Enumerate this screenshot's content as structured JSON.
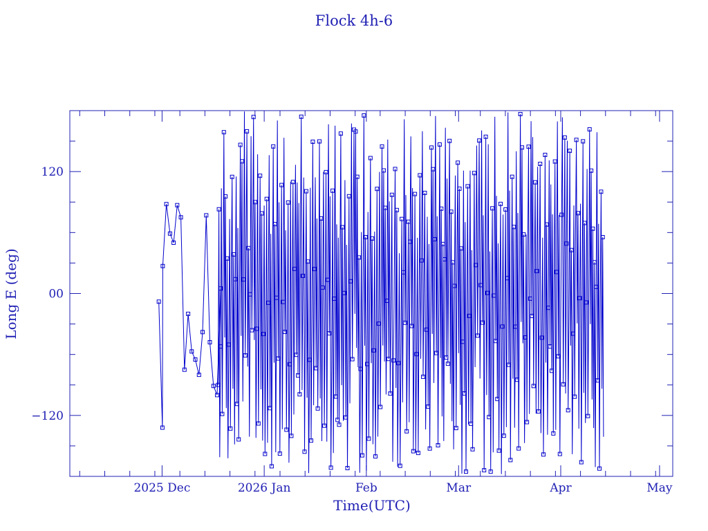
{
  "chart_data": {
    "type": "line",
    "title": "Flock 4h-6",
    "xlabel": "Time(UTC)",
    "ylabel": "Long E (deg)",
    "color": "#0000cc",
    "text_color": "#1f1fb4",
    "marker": "square",
    "xlim": [
      "2025-11-03",
      "2026-05-05"
    ],
    "ylim": [
      -180,
      180
    ],
    "x_ticks": [
      {
        "date": "2025-12-01",
        "label": "2025 Dec"
      },
      {
        "date": "2026-01-01",
        "label": "2026 Jan"
      },
      {
        "date": "2026-02-01",
        "label": "Feb"
      },
      {
        "date": "2026-03-01",
        "label": "Mar"
      },
      {
        "date": "2026-04-01",
        "label": "Apr"
      },
      {
        "date": "2026-05-01",
        "label": "May"
      }
    ],
    "y_ticks": [
      {
        "value": 120,
        "label": "120"
      },
      {
        "value": 0,
        "label": "00"
      },
      {
        "value": -120,
        "label": "−120"
      }
    ],
    "data_start": "2025-11-30",
    "data_end": "2026-04-14",
    "early_series": {
      "x": [
        "2025-11-30",
        "2025-12-01",
        "2025-12-01",
        "2025-12-02",
        "2025-12-03",
        "2025-12-04",
        "2025-12-05",
        "2025-12-06",
        "2025-12-07",
        "2025-12-08",
        "2025-12-09",
        "2025-12-10",
        "2025-12-11",
        "2025-12-12",
        "2025-12-13",
        "2025-12-14",
        "2025-12-15",
        "2025-12-16",
        "2025-12-17"
      ],
      "y": [
        -8,
        -132,
        27,
        88,
        59,
        50,
        87,
        75,
        -75,
        -20,
        -57,
        -65,
        -80,
        -38,
        77,
        -48,
        -91,
        -100,
        5
      ]
    },
    "drift_rate_deg_per_day": 2.4,
    "samples_per_day": 4,
    "wraps_per_day": 1.5
  }
}
